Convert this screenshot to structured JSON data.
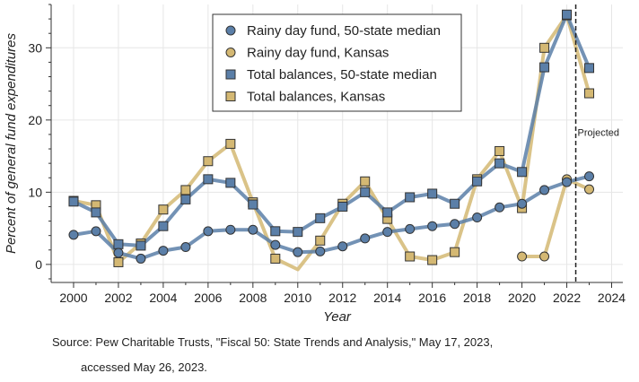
{
  "chart_data": {
    "type": "line",
    "xlabel": "Year",
    "ylabel": "Percent of general fund expenditures",
    "xlim": [
      1999,
      2024.5
    ],
    "ylim": [
      -2.5,
      36
    ],
    "xticks": [
      "2000",
      "2002",
      "2004",
      "2006",
      "2008",
      "2010",
      "2012",
      "2014",
      "2016",
      "2018",
      "2020",
      "2022",
      "2024"
    ],
    "yticks": [
      "0",
      "10",
      "20",
      "30"
    ],
    "grid": true,
    "legend_position": "top-center",
    "annotation": {
      "label": "Projected",
      "x": 2022.4
    },
    "series": [
      {
        "name": "Rainy day fund, 50-state median",
        "color": "#5b7fa8",
        "marker": "circle",
        "segments": [
          [
            [
              2000,
              4.1
            ],
            [
              2001,
              4.6
            ],
            [
              2002,
              1.6
            ],
            [
              2003,
              0.8
            ],
            [
              2004,
              1.9
            ],
            [
              2005,
              2.4
            ],
            [
              2006,
              4.6
            ],
            [
              2007,
              4.8
            ],
            [
              2008,
              4.8
            ],
            [
              2009,
              2.7
            ],
            [
              2010,
              1.7
            ],
            [
              2011,
              1.8
            ],
            [
              2012,
              2.5
            ],
            [
              2013,
              3.6
            ],
            [
              2014,
              4.5
            ],
            [
              2015,
              4.9
            ],
            [
              2016,
              5.3
            ],
            [
              2017,
              5.6
            ],
            [
              2018,
              6.5
            ],
            [
              2019,
              7.9
            ],
            [
              2020,
              8.4
            ],
            [
              2021,
              10.3
            ],
            [
              2022,
              11.4
            ],
            [
              2023,
              12.2
            ]
          ]
        ]
      },
      {
        "name": "Rainy day fund, Kansas",
        "color": "#d4b873",
        "marker": "circle",
        "segments": [
          [
            [
              2020,
              1.1
            ],
            [
              2021,
              1.1
            ],
            [
              2022,
              11.8
            ],
            [
              2023,
              10.4
            ]
          ]
        ]
      },
      {
        "name": "Total balances, 50-state median",
        "color": "#5b7fa8",
        "marker": "square",
        "segments": [
          [
            [
              2000,
              8.7
            ],
            [
              2001,
              7.2
            ],
            [
              2002,
              2.8
            ],
            [
              2003,
              2.6
            ],
            [
              2004,
              5.3
            ],
            [
              2005,
              9.0
            ],
            [
              2006,
              11.8
            ],
            [
              2007,
              11.3
            ],
            [
              2008,
              8.3
            ],
            [
              2009,
              4.6
            ],
            [
              2010,
              4.5
            ],
            [
              2011,
              6.4
            ],
            [
              2012,
              8.0
            ],
            [
              2013,
              10.0
            ],
            [
              2014,
              7.2
            ],
            [
              2015,
              9.3
            ],
            [
              2016,
              9.8
            ],
            [
              2017,
              8.4
            ],
            [
              2018,
              11.5
            ],
            [
              2019,
              14.0
            ],
            [
              2020,
              12.8
            ],
            [
              2021,
              27.3
            ],
            [
              2022,
              34.6
            ],
            [
              2023,
              27.2
            ]
          ]
        ]
      },
      {
        "name": "Total balances, Kansas",
        "color": "#d4b873",
        "marker": "square",
        "segments": [
          [
            [
              2000,
              8.8
            ],
            [
              2001,
              8.2
            ],
            [
              2002,
              0.3
            ],
            [
              2003,
              2.9
            ],
            [
              2004,
              7.6
            ],
            [
              2005,
              10.3
            ],
            [
              2006,
              14.3
            ],
            [
              2007,
              16.7
            ],
            [
              2008,
              8.6
            ],
            [
              2009,
              0.8
            ],
            [
              2010,
              -0.7
            ],
            [
              2011,
              3.3
            ],
            [
              2012,
              8.4
            ],
            [
              2013,
              11.5
            ],
            [
              2014,
              6.3
            ],
            [
              2015,
              1.1
            ],
            [
              2016,
              0.6
            ],
            [
              2017,
              1.7
            ],
            [
              2018,
              11.8
            ],
            [
              2019,
              15.7
            ],
            [
              2020,
              7.8
            ],
            [
              2021,
              30.0
            ],
            [
              2022,
              34.5
            ],
            [
              2023,
              23.7
            ]
          ]
        ],
        "hidden_markers": [
          2010
        ]
      }
    ]
  },
  "source": {
    "line1": "Source: Pew Charitable Trusts, \"Fiscal 50: State Trends and Analysis,\" May 17, 2023,",
    "line2": "accessed May 26, 2023."
  }
}
